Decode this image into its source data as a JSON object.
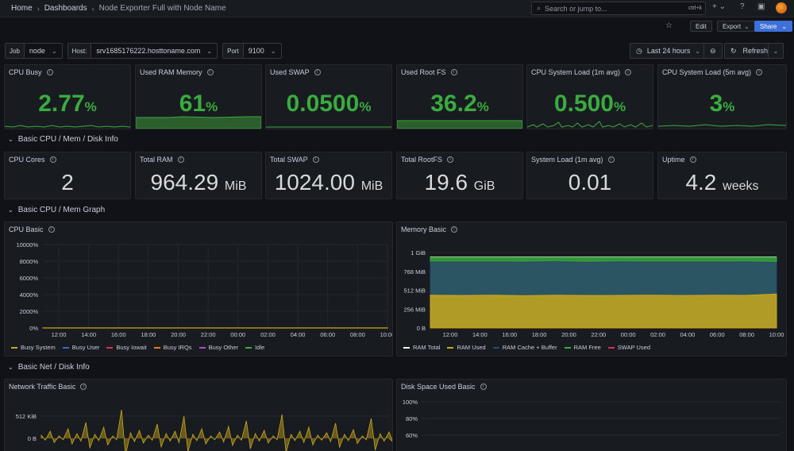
{
  "nav": {
    "breadcrumbs": [
      "Home",
      "Dashboards",
      "Node Exporter Full with Node Name"
    ],
    "search_placeholder": "Search or jump to...",
    "search_shortcut": "ctrl+k"
  },
  "toolbar": {
    "edit": "Edit",
    "export": "Export",
    "share": "Share"
  },
  "variables": [
    {
      "label": "Job",
      "value": "node"
    },
    {
      "label": "Host:",
      "value": "srv1685176222.hosttoname.com"
    },
    {
      "label": "Port",
      "value": "9100"
    }
  ],
  "time_range": {
    "label": "Last 24 hours",
    "refresh": "Refresh"
  },
  "top_stats": [
    {
      "title": "CPU Busy",
      "value": "2.77",
      "unit": "%"
    },
    {
      "title": "Used RAM Memory",
      "value": "61",
      "unit": "%"
    },
    {
      "title": "Used SWAP",
      "value": "0.0500",
      "unit": "%"
    },
    {
      "title": "Used Root FS",
      "value": "36.2",
      "unit": "%"
    },
    {
      "title": "CPU System Load (1m avg)",
      "value": "0.500",
      "unit": "%"
    },
    {
      "title": "CPU System Load (5m avg)",
      "value": "3",
      "unit": "%"
    }
  ],
  "rows": {
    "basic_info": "Basic CPU / Mem / Disk Info",
    "graph": "Basic CPU / Mem Graph",
    "net": "Basic Net / Disk Info"
  },
  "info_stats": [
    {
      "title": "CPU Cores",
      "value": "2",
      "unit": ""
    },
    {
      "title": "Total RAM",
      "value": "964.29",
      "unit": "MiB"
    },
    {
      "title": "Total SWAP",
      "value": "1024.00",
      "unit": "MiB"
    },
    {
      "title": "Total RootFS",
      "value": "19.6",
      "unit": "GiB"
    },
    {
      "title": "System Load (1m avg)",
      "value": "0.01",
      "unit": ""
    },
    {
      "title": "Uptime",
      "value": "4.2",
      "unit": "weeks"
    }
  ],
  "colors": {
    "green": "#3aab3e",
    "yellow": "#c9a81c",
    "blue": "#2a4a6b",
    "red": "#e02f44",
    "orange": "#ff780a",
    "purple": "#a352cc"
  },
  "chart_data": [
    {
      "type": "line",
      "title": "CPU Basic",
      "x": [
        "12:00",
        "14:00",
        "16:00",
        "18:00",
        "20:00",
        "22:00",
        "00:00",
        "02:00",
        "04:00",
        "06:00",
        "08:00",
        "10:00"
      ],
      "y_ticks": [
        "0%",
        "2000%",
        "4000%",
        "6000%",
        "8000%",
        "10000%"
      ],
      "ylim": [
        0,
        10000
      ],
      "series": [
        {
          "name": "Busy System",
          "color": "#c9a81c",
          "values": [
            3,
            3,
            3,
            3,
            3,
            3,
            3,
            3,
            3,
            3,
            3,
            3
          ]
        },
        {
          "name": "Busy User",
          "color": "#2f6fc2",
          "values": [
            1,
            1,
            1,
            1,
            1,
            1,
            1,
            1,
            1,
            1,
            1,
            1
          ]
        },
        {
          "name": "Busy Iowait",
          "color": "#e02f44",
          "values": [
            0,
            0,
            0,
            0,
            0,
            0,
            0,
            0,
            0,
            0,
            0,
            0
          ]
        },
        {
          "name": "Busy IRQs",
          "color": "#ff780a",
          "values": [
            0,
            0,
            0,
            0,
            0,
            0,
            0,
            0,
            0,
            0,
            0,
            0
          ]
        },
        {
          "name": "Busy Other",
          "color": "#a352cc",
          "values": [
            0,
            0,
            0,
            0,
            0,
            0,
            0,
            0,
            0,
            0,
            0,
            0
          ]
        },
        {
          "name": "Idle",
          "color": "#3aab3e",
          "values": [
            0,
            0,
            0,
            0,
            0,
            0,
            0,
            0,
            0,
            0,
            0,
            0
          ]
        }
      ]
    },
    {
      "type": "area",
      "title": "Memory Basic",
      "x": [
        "12:00",
        "14:00",
        "16:00",
        "18:00",
        "20:00",
        "22:00",
        "00:00",
        "02:00",
        "04:00",
        "06:00",
        "08:00",
        "10:00"
      ],
      "y_ticks": [
        "0 B",
        "256 MiB",
        "512 MiB",
        "768 MiB",
        "1 GiB"
      ],
      "ylim": [
        0,
        1024
      ],
      "series": [
        {
          "name": "RAM Total",
          "color": "#ffffff",
          "values": [
            964,
            964,
            964,
            964,
            964,
            964,
            964,
            964,
            964,
            964,
            964,
            964
          ]
        },
        {
          "name": "RAM Used",
          "color": "#c9a81c",
          "values": [
            445,
            440,
            445,
            438,
            445,
            440,
            442,
            445,
            440,
            445,
            442,
            460
          ]
        },
        {
          "name": "RAM Cache + Buffer",
          "color": "#2a4a6b",
          "values": [
            450,
            455,
            450,
            455,
            455,
            450,
            455,
            450,
            455,
            450,
            455,
            430
          ]
        },
        {
          "name": "RAM Free",
          "color": "#3aab3e",
          "values": [
            69,
            69,
            69,
            71,
            64,
            74,
            67,
            69,
            69,
            69,
            67,
            74
          ]
        },
        {
          "name": "SWAP Used",
          "color": "#e02f44",
          "values": [
            0,
            0,
            0,
            0,
            0,
            0,
            0,
            0,
            0,
            0,
            0,
            0
          ]
        }
      ]
    },
    {
      "type": "area",
      "title": "Network Traffic Basic",
      "y_ticks": [
        "0 B",
        "512 KiB"
      ],
      "series": [
        {
          "name": "",
          "color": "#c9a81c",
          "values": []
        }
      ]
    },
    {
      "type": "line",
      "title": "Disk Space Used Basic",
      "y_ticks": [
        "60%",
        "80%",
        "100%"
      ],
      "series": []
    }
  ]
}
